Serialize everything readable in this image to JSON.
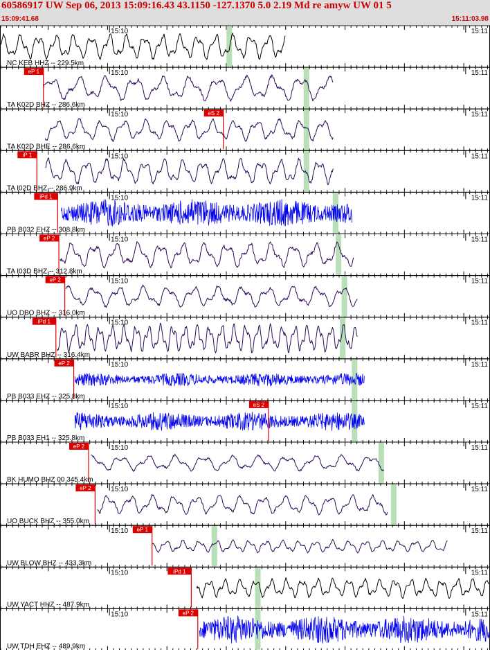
{
  "header": {
    "title": "60586917 UW Sep 06, 2013 15:09:16.43   43.1150 -127.1370  5.0 2.19 Md re amyw UW 01   5",
    "start_time": "15:09:41.68",
    "end_time": "15:11:03.98"
  },
  "colors": {
    "header_bg": "#dedede",
    "header_text": "#cc0000",
    "pick": "#dd0000",
    "window": "#b8dfb8",
    "trace_black": "#000000",
    "trace_purple": "#2a0a55",
    "trace_blue": "#0000ee"
  },
  "chart_data": {
    "type": "line",
    "x_range_seconds": [
      0,
      82.3
    ],
    "tick_labels": [
      "15:10",
      "15:11"
    ],
    "tick_times_s": [
      18.32,
      78.32
    ],
    "traces": [
      {
        "label": "NC KEB HHZ -- 229.5km",
        "pick": null,
        "pick_time": null,
        "window_time": 38.5,
        "trace_start": 0.0,
        "trace_end": 48.0,
        "color": "black",
        "amp": 0.7,
        "period": 3.2
      },
      {
        "label": "TA K02D BHZ -- 286.6km",
        "pick": "eP 1",
        "pick_time": 7.2,
        "window_time": 51.5,
        "trace_start": 7.2,
        "trace_end": 56.0,
        "color": "purple",
        "amp": 0.7,
        "period": 5.0
      },
      {
        "label": "TA K02D BHE -- 286.6km",
        "pick": "eS 2",
        "pick_time": 37.5,
        "window_time": 51.5,
        "trace_start": 7.5,
        "trace_end": 56.0,
        "color": "purple",
        "amp": 0.6,
        "period": 4.0
      },
      {
        "label": "TA I02D BHZ -- 286.9km",
        "pick": "iP 1",
        "pick_time": 6.1,
        "window_time": 51.5,
        "trace_start": 7.5,
        "trace_end": 56.0,
        "color": "purple",
        "amp": 0.7,
        "period": 3.5
      },
      {
        "label": "PB B032 EHZ -- 308.8km",
        "pick": "iPd 1",
        "pick_time": 9.6,
        "window_time": 56.4,
        "trace_start": 10.2,
        "trace_end": 59.2,
        "color": "blue",
        "amp": 0.75,
        "period": 0.6
      },
      {
        "label": "TA I03D BHZ -- 312.8km",
        "pick": "eP 2",
        "pick_time": 9.8,
        "window_time": 56.9,
        "trace_start": 10.0,
        "trace_end": 59.5,
        "color": "purple",
        "amp": 0.7,
        "period": 4.0
      },
      {
        "label": "UO DBO BHZ -- 316.0km",
        "pick": "eP 2",
        "pick_time": 10.8,
        "window_time": 57.9,
        "trace_start": 11.0,
        "trace_end": 60.1,
        "color": "purple",
        "amp": 0.6,
        "period": 4.5
      },
      {
        "label": "UW BABR BHZ -- 316.4km",
        "pick": "iPd 1",
        "pick_time": 9.3,
        "window_time": 57.6,
        "trace_start": 9.5,
        "trace_end": 60.1,
        "color": "purple",
        "amp": 0.8,
        "period": 2.2
      },
      {
        "label": "PB B033 EHZ -- 325.8km",
        "pick": "eP 2",
        "pick_time": 12.3,
        "window_time": 59.6,
        "trace_start": 12.5,
        "trace_end": 61.3,
        "color": "blue",
        "amp": 0.35,
        "period": 0.6
      },
      {
        "label": "PB B033 EH1 -- 325.8km",
        "pick": "eS 2",
        "pick_time": 45.1,
        "window_time": 59.6,
        "trace_start": 12.5,
        "trace_end": 61.3,
        "color": "blue",
        "amp": 0.5,
        "period": 0.6
      },
      {
        "label": "BK HUMO BHZ 00 345.4km",
        "pick": "eP 2",
        "pick_time": 14.8,
        "window_time": 64.1,
        "trace_start": 15.2,
        "trace_end": 64.6,
        "color": "purple",
        "amp": 0.45,
        "period": 5.0
      },
      {
        "label": "UO BUCK BHZ -- 355.0km",
        "pick": "eP 2",
        "pick_time": 15.9,
        "window_time": 66.2,
        "trace_start": 16.3,
        "trace_end": 65.2,
        "color": "purple",
        "amp": 0.55,
        "period": 4.0
      },
      {
        "label": "UW BLOW BHZ -- 433.3km",
        "pick": "eP 1",
        "pick_time": 25.5,
        "window_time": 36.0,
        "trace_start": 25.5,
        "trace_end": 75.3,
        "color": "purple",
        "amp": 0.35,
        "period": 3.0
      },
      {
        "label": "UW YACT HHZ -- 487.9km",
        "pick": "iPd 1",
        "pick_time": 32.1,
        "window_time": 43.3,
        "trace_start": 33.0,
        "trace_end": 82.3,
        "color": "black",
        "amp": 0.55,
        "period": 2.8
      },
      {
        "label": "UW TDH EHZ -- 489.9km",
        "pick": "eP 2",
        "pick_time": 33.2,
        "window_time": 43.3,
        "trace_start": 33.5,
        "trace_end": 82.3,
        "color": "blue",
        "amp": 0.75,
        "period": 0.6
      }
    ]
  }
}
